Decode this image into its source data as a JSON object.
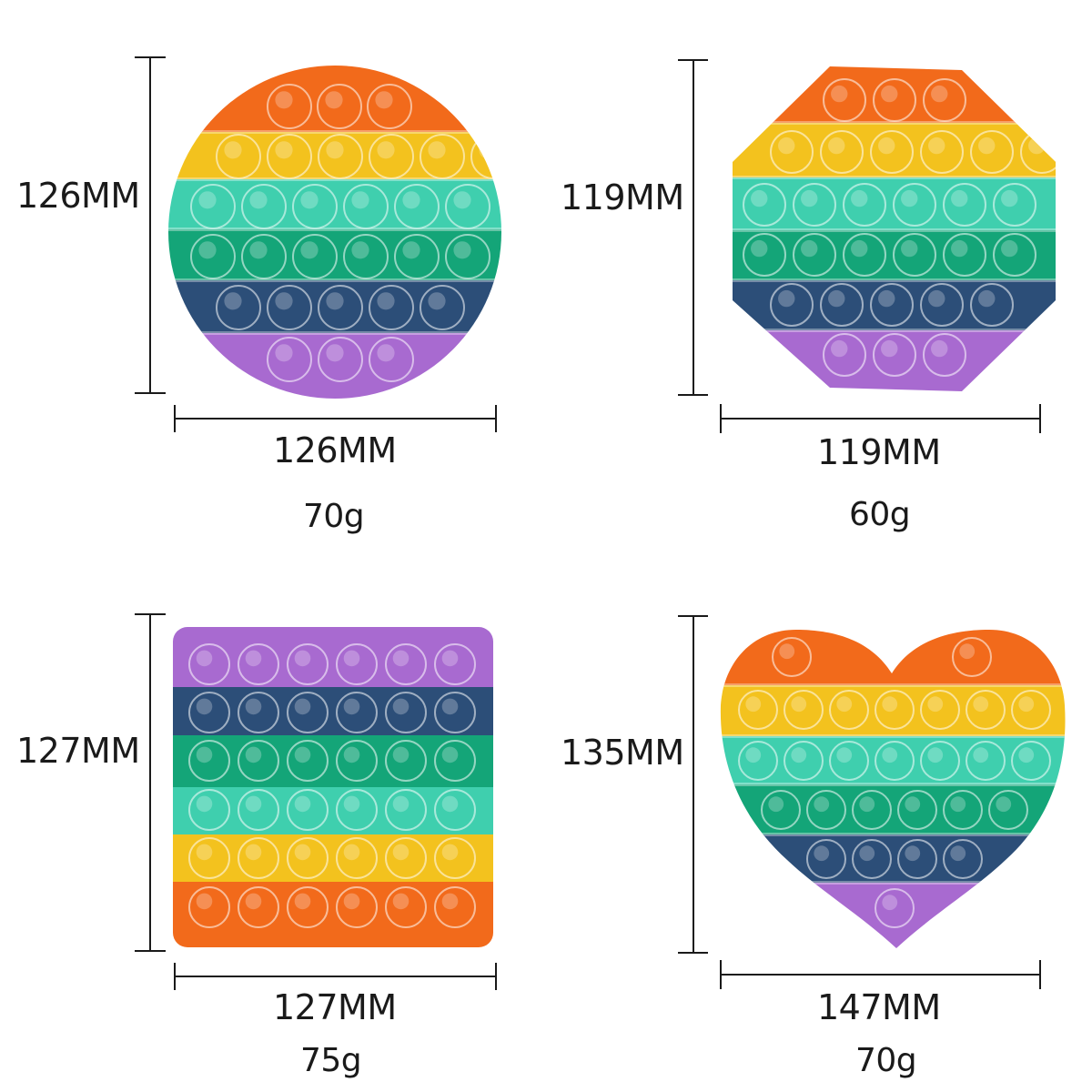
{
  "colors": {
    "orange": "#f26a1b",
    "yellow": "#f3c21e",
    "teal": "#3fcfae",
    "green": "#14a578",
    "navy": "#2c4e78",
    "purple": "#a86ad0",
    "outline": "#1a1a1a"
  },
  "products": [
    {
      "shape": "circle",
      "height_label": "126MM",
      "width_label": "126MM",
      "weight_label": "70g"
    },
    {
      "shape": "octagon",
      "height_label": "119MM",
      "width_label": "119MM",
      "weight_label": "60g"
    },
    {
      "shape": "square",
      "height_label": "127MM",
      "width_label": "127MM",
      "weight_label": "75g"
    },
    {
      "shape": "heart",
      "height_label": "135MM",
      "width_label": "147MM",
      "weight_label": "70g"
    }
  ]
}
